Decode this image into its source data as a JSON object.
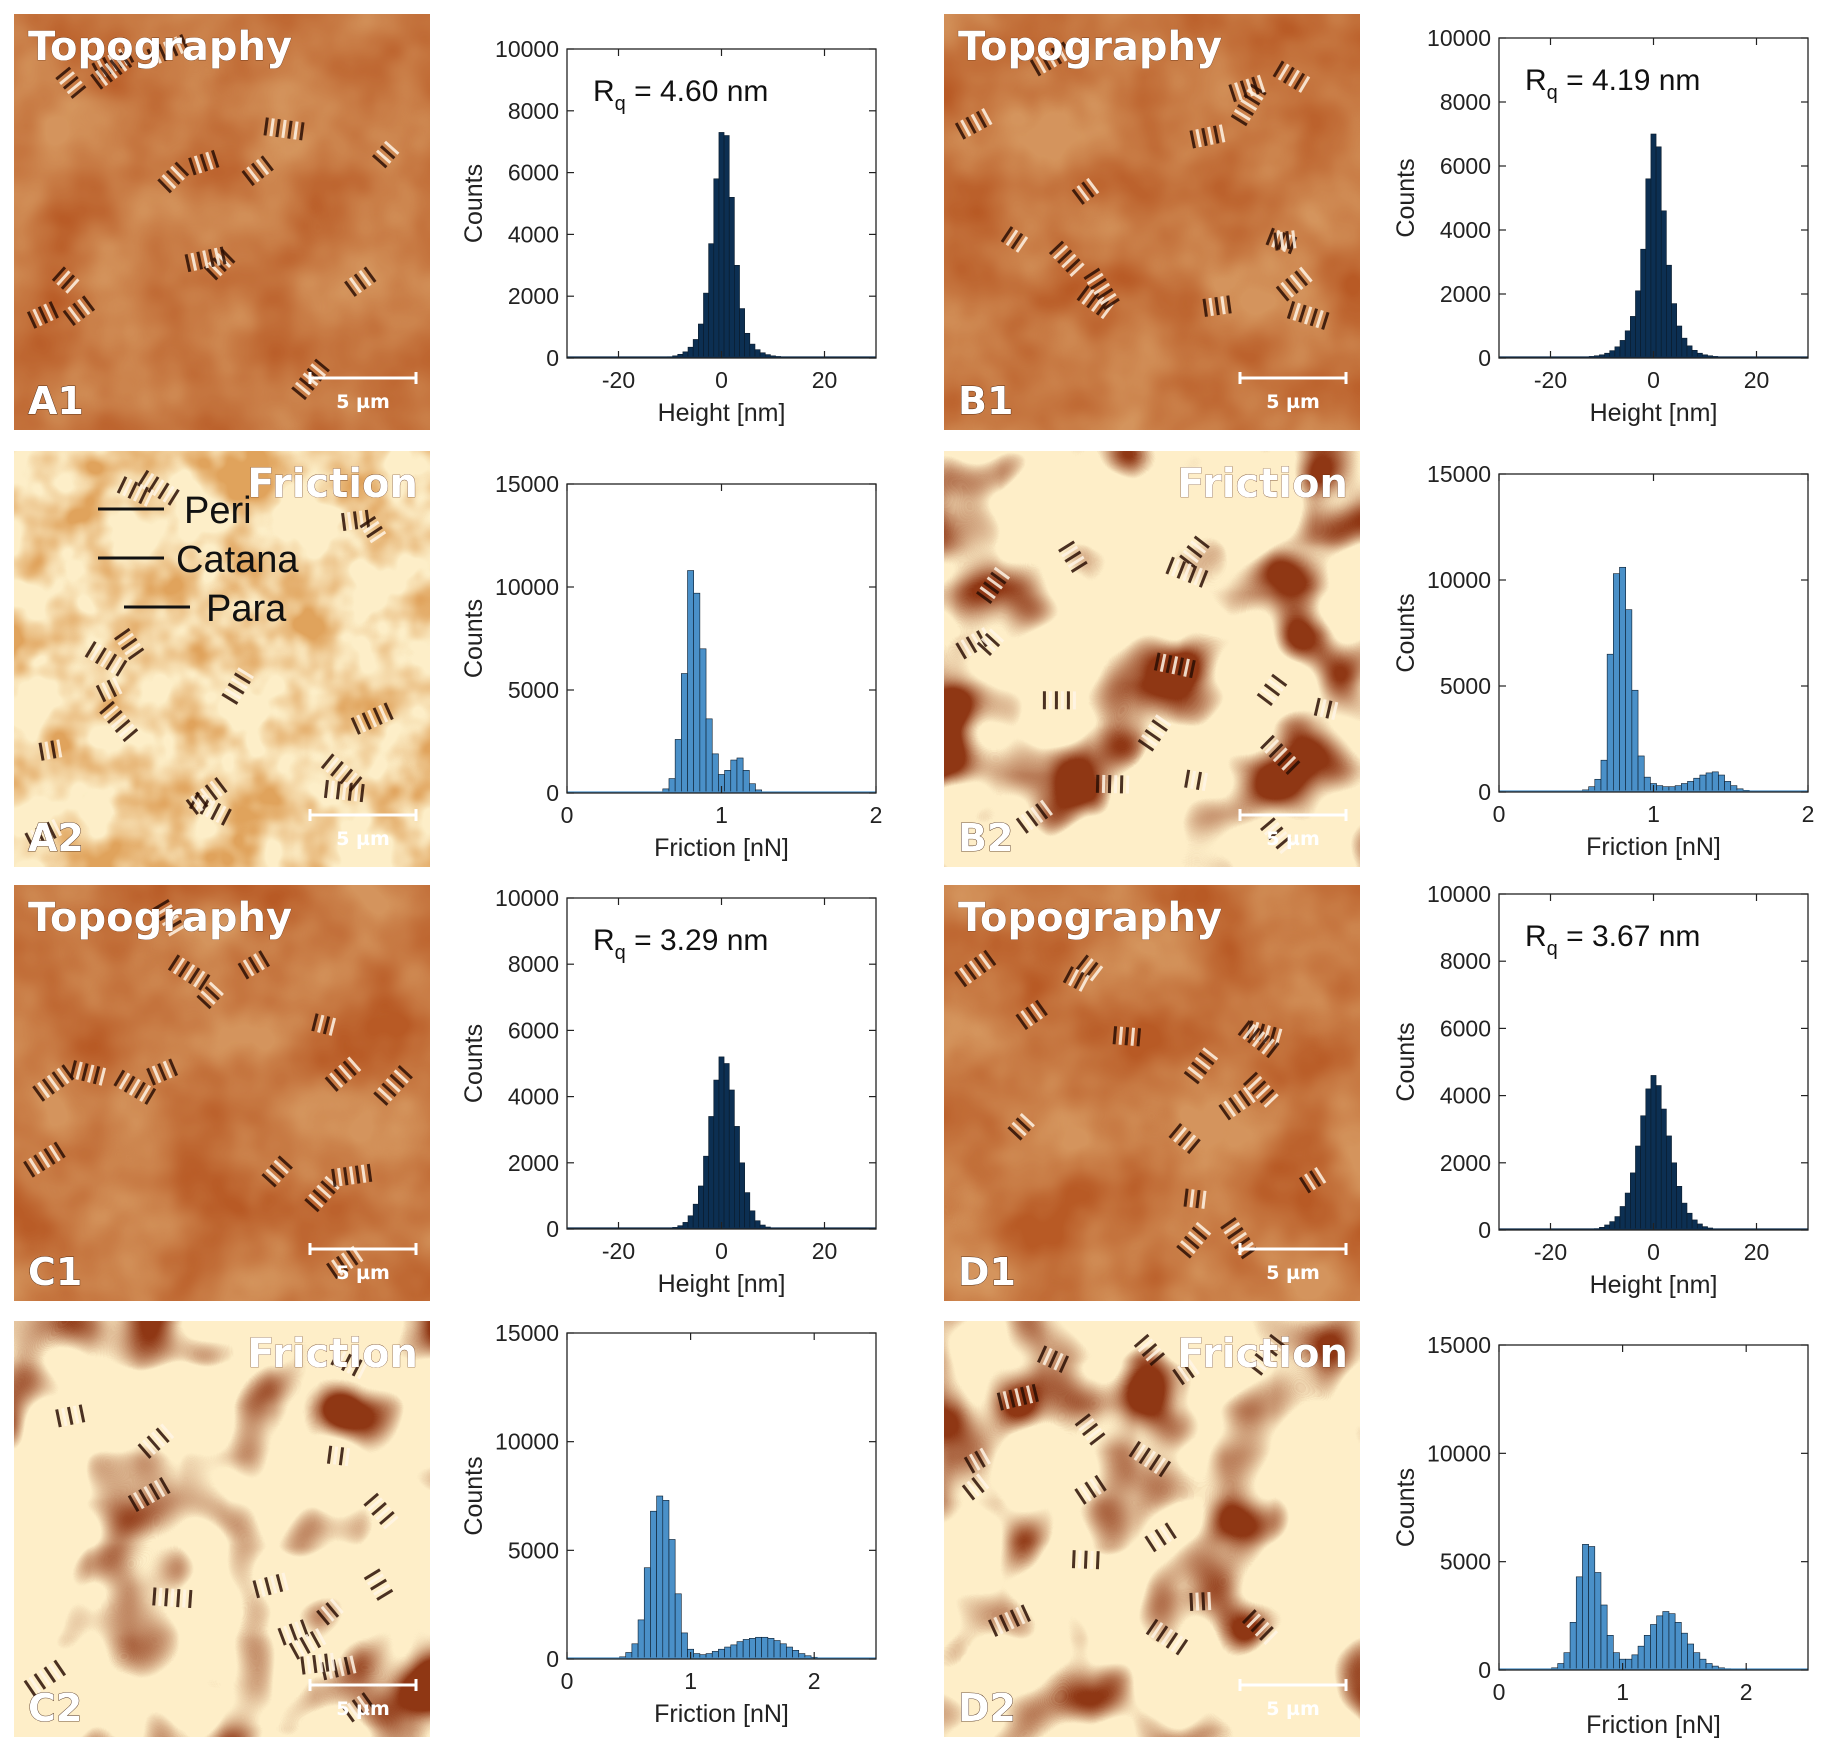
{
  "figure": {
    "rows": [
      {
        "left": "A",
        "right": "B"
      }
    ]
  },
  "images": [
    {
      "id": "A1",
      "title": "Topography",
      "corner": "A1",
      "scale": "5 µm",
      "kind": "topo"
    },
    {
      "id": "A2",
      "title": "Friction",
      "corner": "A2",
      "scale": "5 µm",
      "kind": "fric-light",
      "legend": [
        "Peri",
        "Catana",
        "Para"
      ]
    },
    {
      "id": "B1",
      "title": "Topography",
      "corner": "B1",
      "scale": "5 µm",
      "kind": "topo"
    },
    {
      "id": "B2",
      "title": "Friction",
      "corner": "B2",
      "scale": "5 µm",
      "kind": "fric-dark"
    },
    {
      "id": "C1",
      "title": "Topography",
      "corner": "C1",
      "scale": "5 µm",
      "kind": "topo"
    },
    {
      "id": "C2",
      "title": "Friction",
      "corner": "C2",
      "scale": "5 µm",
      "kind": "fric-dark"
    },
    {
      "id": "D1",
      "title": "Topography",
      "corner": "D1",
      "scale": "5 µm",
      "kind": "topo"
    },
    {
      "id": "D2",
      "title": "Friction",
      "corner": "D2",
      "scale": "5 µm",
      "kind": "fric-dark"
    }
  ],
  "colors": {
    "height_bar": "#0c2f52",
    "friction_bar": "#4a90c8",
    "axis": "#222222"
  },
  "chart_data": [
    {
      "id": "A1-hist",
      "type": "bar",
      "xlabel": "Height [nm]",
      "ylabel": "Counts",
      "xlim": [
        -30,
        30
      ],
      "ylim": [
        0,
        10000
      ],
      "xticks": [
        -20,
        0,
        20
      ],
      "yticks": [
        0,
        2000,
        4000,
        6000,
        8000,
        10000
      ],
      "annotation": {
        "base": "R",
        "sub": "q",
        "text": " = 4.60 nm"
      },
      "bin_width": 1,
      "bins": [
        -10,
        -9,
        -8,
        -7,
        -6,
        -5,
        -4,
        -3,
        -2,
        -1,
        0,
        1,
        2,
        3,
        4,
        5,
        6,
        7,
        8,
        9,
        10,
        11,
        12
      ],
      "values": [
        40,
        70,
        120,
        200,
        350,
        600,
        1100,
        2100,
        3700,
        5800,
        7300,
        7200,
        5200,
        3000,
        1600,
        800,
        450,
        270,
        170,
        110,
        70,
        50,
        30
      ]
    },
    {
      "id": "A2-hist",
      "type": "bar",
      "xlabel": "Friction [nN]",
      "ylabel": "Counts",
      "xlim": [
        0,
        2
      ],
      "ylim": [
        0,
        15000
      ],
      "xticks": [
        0,
        1,
        2
      ],
      "yticks": [
        0,
        5000,
        10000,
        15000
      ],
      "bin_width": 0.04,
      "bins": [
        0.64,
        0.68,
        0.72,
        0.76,
        0.8,
        0.84,
        0.88,
        0.92,
        0.96,
        1.0,
        1.04,
        1.08,
        1.12,
        1.16,
        1.2,
        1.24,
        1.28
      ],
      "values": [
        200,
        700,
        2600,
        5800,
        10800,
        9700,
        7000,
        3600,
        1900,
        900,
        1100,
        1600,
        1700,
        1100,
        450,
        150,
        50
      ]
    },
    {
      "id": "B1-hist",
      "type": "bar",
      "xlabel": "Height [nm]",
      "ylabel": "Counts",
      "xlim": [
        -30,
        30
      ],
      "ylim": [
        0,
        10000
      ],
      "xticks": [
        -20,
        0,
        20
      ],
      "yticks": [
        0,
        2000,
        4000,
        6000,
        8000,
        10000
      ],
      "annotation": {
        "base": "R",
        "sub": "q",
        "text": " = 4.19 nm"
      },
      "bin_width": 1,
      "bins": [
        -12,
        -11,
        -10,
        -9,
        -8,
        -7,
        -6,
        -5,
        -4,
        -3,
        -2,
        -1,
        0,
        1,
        2,
        3,
        4,
        5,
        6,
        7,
        8,
        9,
        10,
        11,
        12
      ],
      "values": [
        50,
        70,
        100,
        150,
        230,
        350,
        550,
        850,
        1300,
        2100,
        3400,
        5600,
        7000,
        6600,
        4600,
        2900,
        1700,
        1000,
        620,
        380,
        240,
        150,
        100,
        70,
        50
      ]
    },
    {
      "id": "B2-hist",
      "type": "bar",
      "xlabel": "Friction [nN]",
      "ylabel": "Counts",
      "xlim": [
        0,
        2
      ],
      "ylim": [
        0,
        15000
      ],
      "xticks": [
        0,
        1,
        2
      ],
      "yticks": [
        0,
        5000,
        10000,
        15000
      ],
      "bin_width": 0.04,
      "bins": [
        0.56,
        0.6,
        0.64,
        0.68,
        0.72,
        0.76,
        0.8,
        0.84,
        0.88,
        0.92,
        0.96,
        1.0,
        1.04,
        1.08,
        1.12,
        1.16,
        1.2,
        1.24,
        1.28,
        1.32,
        1.36,
        1.4,
        1.44,
        1.48,
        1.52,
        1.56,
        1.6,
        1.64
      ],
      "values": [
        100,
        250,
        600,
        1500,
        6500,
        10300,
        10600,
        8600,
        4800,
        1700,
        700,
        400,
        300,
        250,
        250,
        300,
        400,
        500,
        650,
        800,
        900,
        950,
        800,
        500,
        300,
        150,
        80,
        40
      ]
    },
    {
      "id": "C1-hist",
      "type": "bar",
      "xlabel": "Height [nm]",
      "ylabel": "Counts",
      "xlim": [
        -30,
        30
      ],
      "ylim": [
        0,
        10000
      ],
      "xticks": [
        -20,
        0,
        20
      ],
      "yticks": [
        0,
        2000,
        4000,
        6000,
        8000,
        10000
      ],
      "annotation": {
        "base": "R",
        "sub": "q",
        "text": " = 3.29 nm"
      },
      "bin_width": 1,
      "bins": [
        -10,
        -9,
        -8,
        -7,
        -6,
        -5,
        -4,
        -3,
        -2,
        -1,
        0,
        1,
        2,
        3,
        4,
        5,
        6,
        7,
        8,
        9,
        10
      ],
      "values": [
        20,
        50,
        100,
        200,
        400,
        750,
        1300,
        2200,
        3400,
        4500,
        5200,
        5000,
        4200,
        3100,
        2000,
        1100,
        550,
        250,
        120,
        60,
        30
      ]
    },
    {
      "id": "C2-hist",
      "type": "bar",
      "xlabel": "Friction [nN]",
      "ylabel": "Counts",
      "xlim": [
        0,
        2.5
      ],
      "ylim": [
        0,
        15000
      ],
      "xticks": [
        0,
        1,
        2
      ],
      "yticks": [
        0,
        5000,
        10000,
        15000
      ],
      "bin_width": 0.05,
      "bins": [
        0.45,
        0.5,
        0.55,
        0.6,
        0.65,
        0.7,
        0.75,
        0.8,
        0.85,
        0.9,
        0.95,
        1.0,
        1.05,
        1.1,
        1.15,
        1.2,
        1.25,
        1.3,
        1.35,
        1.4,
        1.45,
        1.5,
        1.55,
        1.6,
        1.65,
        1.7,
        1.75,
        1.8,
        1.85,
        1.9,
        1.95,
        2.0
      ],
      "values": [
        100,
        300,
        700,
        1800,
        4200,
        6800,
        7500,
        7300,
        5500,
        3000,
        1200,
        450,
        250,
        200,
        250,
        350,
        450,
        550,
        650,
        800,
        900,
        950,
        1000,
        1000,
        950,
        850,
        700,
        550,
        400,
        250,
        150,
        80
      ]
    },
    {
      "id": "D1-hist",
      "type": "bar",
      "xlabel": "Height [nm]",
      "ylabel": "Counts",
      "xlim": [
        -30,
        30
      ],
      "ylim": [
        0,
        10000
      ],
      "xticks": [
        -20,
        0,
        20
      ],
      "yticks": [
        0,
        2000,
        4000,
        6000,
        8000,
        10000
      ],
      "annotation": {
        "base": "R",
        "sub": "q",
        "text": " = 3.67 nm"
      },
      "bin_width": 1,
      "bins": [
        -12,
        -11,
        -10,
        -9,
        -8,
        -7,
        -6,
        -5,
        -4,
        -3,
        -2,
        -1,
        0,
        1,
        2,
        3,
        4,
        5,
        6,
        7,
        8,
        9,
        10,
        11,
        12
      ],
      "values": [
        20,
        40,
        80,
        150,
        250,
        400,
        700,
        1100,
        1700,
        2500,
        3400,
        4200,
        4600,
        4300,
        3600,
        2800,
        2000,
        1300,
        800,
        500,
        300,
        180,
        100,
        60,
        30
      ]
    },
    {
      "id": "D2-hist",
      "type": "bar",
      "xlabel": "Friction [nN]",
      "ylabel": "Counts",
      "xlim": [
        0,
        2.5
      ],
      "ylim": [
        0,
        15000
      ],
      "xticks": [
        0,
        1,
        2
      ],
      "yticks": [
        0,
        5000,
        10000,
        15000
      ],
      "bin_width": 0.05,
      "bins": [
        0.45,
        0.5,
        0.55,
        0.6,
        0.65,
        0.7,
        0.75,
        0.8,
        0.85,
        0.9,
        0.95,
        1.0,
        1.05,
        1.1,
        1.15,
        1.2,
        1.25,
        1.3,
        1.35,
        1.4,
        1.45,
        1.5,
        1.55,
        1.6,
        1.65,
        1.7,
        1.75,
        1.8,
        1.85,
        1.9
      ],
      "values": [
        100,
        300,
        800,
        2200,
        4300,
        5800,
        5700,
        4500,
        3000,
        1600,
        800,
        500,
        500,
        700,
        1100,
        1600,
        2100,
        2500,
        2700,
        2600,
        2200,
        1700,
        1200,
        800,
        500,
        300,
        180,
        100,
        60,
        30
      ]
    }
  ]
}
